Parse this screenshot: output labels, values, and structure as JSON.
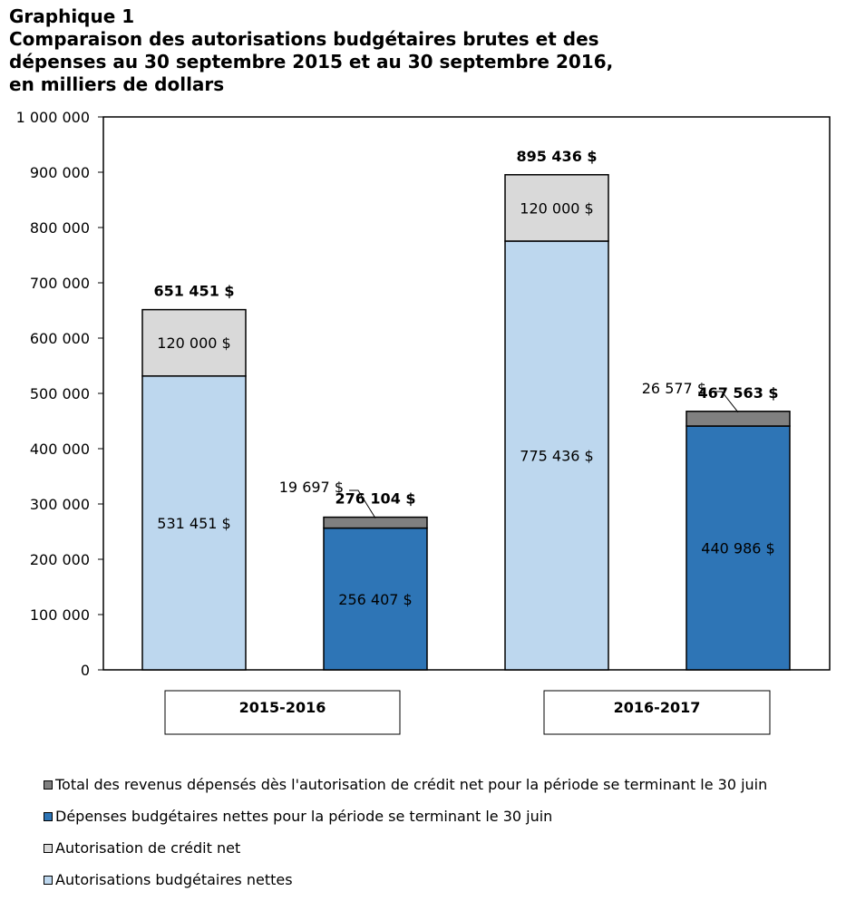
{
  "title": {
    "line1": "Graphique 1",
    "line2": "Comparaison des autorisations budgétaires brutes et des",
    "line3": "dépenses au 30 septembre 2015 et au 30 septembre 2016,",
    "line4": "en milliers de dollars"
  },
  "colors": {
    "autorisations": "#bdd7ee",
    "credit_net": "#d9d9d9",
    "depenses": "#2e75b6",
    "revenus": "#808080"
  },
  "chart_data": {
    "type": "bar",
    "stacked": true,
    "ylim": [
      0,
      1000000
    ],
    "yticks": [
      0,
      100000,
      200000,
      300000,
      400000,
      500000,
      600000,
      700000,
      800000,
      900000,
      1000000
    ],
    "ytick_labels": [
      "0",
      "100 000",
      "200 000",
      "300 000",
      "400 000",
      "500 000",
      "600 000",
      "700 000",
      "800 000",
      "900 000",
      "1 000 000"
    ],
    "groups": [
      "2015-2016",
      "2016-2017"
    ],
    "bars": [
      {
        "group": "2015-2016",
        "total": 651451,
        "total_label": "651 451 $",
        "segments": [
          {
            "series": "Autorisations budgétaires nettes",
            "value": 531451,
            "label": "531 451 $",
            "color": "#bdd7ee"
          },
          {
            "series": "Autorisation de crédit net",
            "value": 120000,
            "label": "120 000 $",
            "color": "#d9d9d9"
          }
        ]
      },
      {
        "group": "2015-2016",
        "total": 276104,
        "total_label": "276 104 $",
        "segments": [
          {
            "series": "Dépenses budgétaires nettes pour la période se terminant le 30 juin",
            "value": 256407,
            "label": "256 407 $",
            "color": "#2e75b6"
          },
          {
            "series": "Total des revenus dépensés dès l'autorisation de crédit net pour la période se terminant le 30 juin",
            "value": 19697,
            "label": "19 697 $",
            "color": "#808080",
            "callout": true
          }
        ]
      },
      {
        "group": "2016-2017",
        "total": 895436,
        "total_label": "895 436 $",
        "segments": [
          {
            "series": "Autorisations budgétaires nettes",
            "value": 775436,
            "label": "775 436 $",
            "color": "#bdd7ee"
          },
          {
            "series": "Autorisation de crédit net",
            "value": 120000,
            "label": "120 000 $",
            "color": "#d9d9d9"
          }
        ]
      },
      {
        "group": "2016-2017",
        "total": 467563,
        "total_label": "467 563 $",
        "segments": [
          {
            "series": "Dépenses budgétaires nettes pour la période se terminant le 30 juin",
            "value": 440986,
            "label": "440 986 $",
            "color": "#2e75b6"
          },
          {
            "series": "Total des revenus dépensés dès l'autorisation de crédit net pour la période se terminant le 30 juin",
            "value": 26577,
            "label": "26 577 $",
            "color": "#808080",
            "callout": true
          }
        ]
      }
    ],
    "legend": [
      {
        "label": "Total des revenus dépensés dès l'autorisation de crédit net pour la période se terminant le 30 juin",
        "color": "#808080"
      },
      {
        "label": "Dépenses budgétaires nettes pour la période se terminant le 30 juin",
        "color": "#2e75b6"
      },
      {
        "label": "Autorisation de crédit net",
        "color": "#d9d9d9"
      },
      {
        "label": "Autorisations budgétaires nettes",
        "color": "#bdd7ee"
      }
    ],
    "legend_position": "bottom",
    "grid": false
  }
}
